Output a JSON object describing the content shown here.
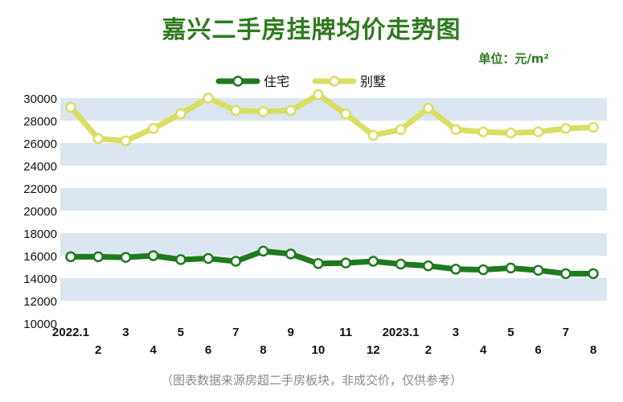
{
  "title": "嘉兴二手房挂牌均价走势图",
  "unit_label": "单位：元/m²",
  "footnote": "（图表数据来源房超二手房板块，非成交价，仅供参考）",
  "colors": {
    "residential": "#1f7a1f",
    "villa": "#d9df62",
    "band": "#dbe6f1",
    "title": "#2f7a1f"
  },
  "chart_data": {
    "type": "line",
    "title": "嘉兴二手房挂牌均价走势图",
    "unit": "元/m²",
    "x_labels": [
      "2022.1",
      "2",
      "3",
      "4",
      "5",
      "6",
      "7",
      "8",
      "9",
      "10",
      "11",
      "12",
      "2023.1",
      "2",
      "3",
      "4",
      "5",
      "6",
      "7",
      "8"
    ],
    "ylim": [
      10000,
      30000
    ],
    "yticks": [
      10000,
      12000,
      14000,
      16000,
      18000,
      20000,
      22000,
      24000,
      26000,
      28000,
      30000
    ],
    "legend_position": "top-center",
    "series": [
      {
        "name": "住宅",
        "color": "#1f7a1f",
        "values": [
          15900,
          15900,
          15850,
          16000,
          15650,
          15750,
          15500,
          16400,
          16150,
          15300,
          15350,
          15500,
          15250,
          15100,
          14800,
          14750,
          14900,
          14700,
          14400,
          14400
        ]
      },
      {
        "name": "别墅",
        "color": "#d9df62",
        "values": [
          29200,
          26400,
          26200,
          27300,
          28600,
          30000,
          28900,
          28800,
          28900,
          30300,
          28600,
          26700,
          27200,
          29100,
          27200,
          27000,
          26900,
          27000,
          27300,
          27400
        ]
      }
    ]
  }
}
